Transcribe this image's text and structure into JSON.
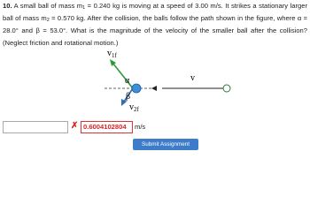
{
  "question": {
    "number": "10.",
    "text": [
      "A small ball of mass m",
      " = 0.240 kg is moving at a speed of 3.00 m/s. It strikes a stationary larger ball of mass m",
      " = 0.570 kg. After the collision, the balls follow the path shown in the figure, where α = 28.0° and β = 53.0°. What is the magnitude of the velocity of the smaller ball after the collision? (Neglect friction and rotational motion.)"
    ],
    "subscripts": [
      "1",
      "2"
    ]
  },
  "figure": {
    "v1f": {
      "main": "v",
      "sub": "1f"
    },
    "v2f": {
      "main": "v",
      "sub": "2f"
    },
    "alpha": "α",
    "beta": "β",
    "v": "v"
  },
  "answer": {
    "input": "",
    "mark": "✗",
    "submitted": "0.6004102804",
    "unit": "m/s"
  },
  "button": "Submit Assignment"
}
